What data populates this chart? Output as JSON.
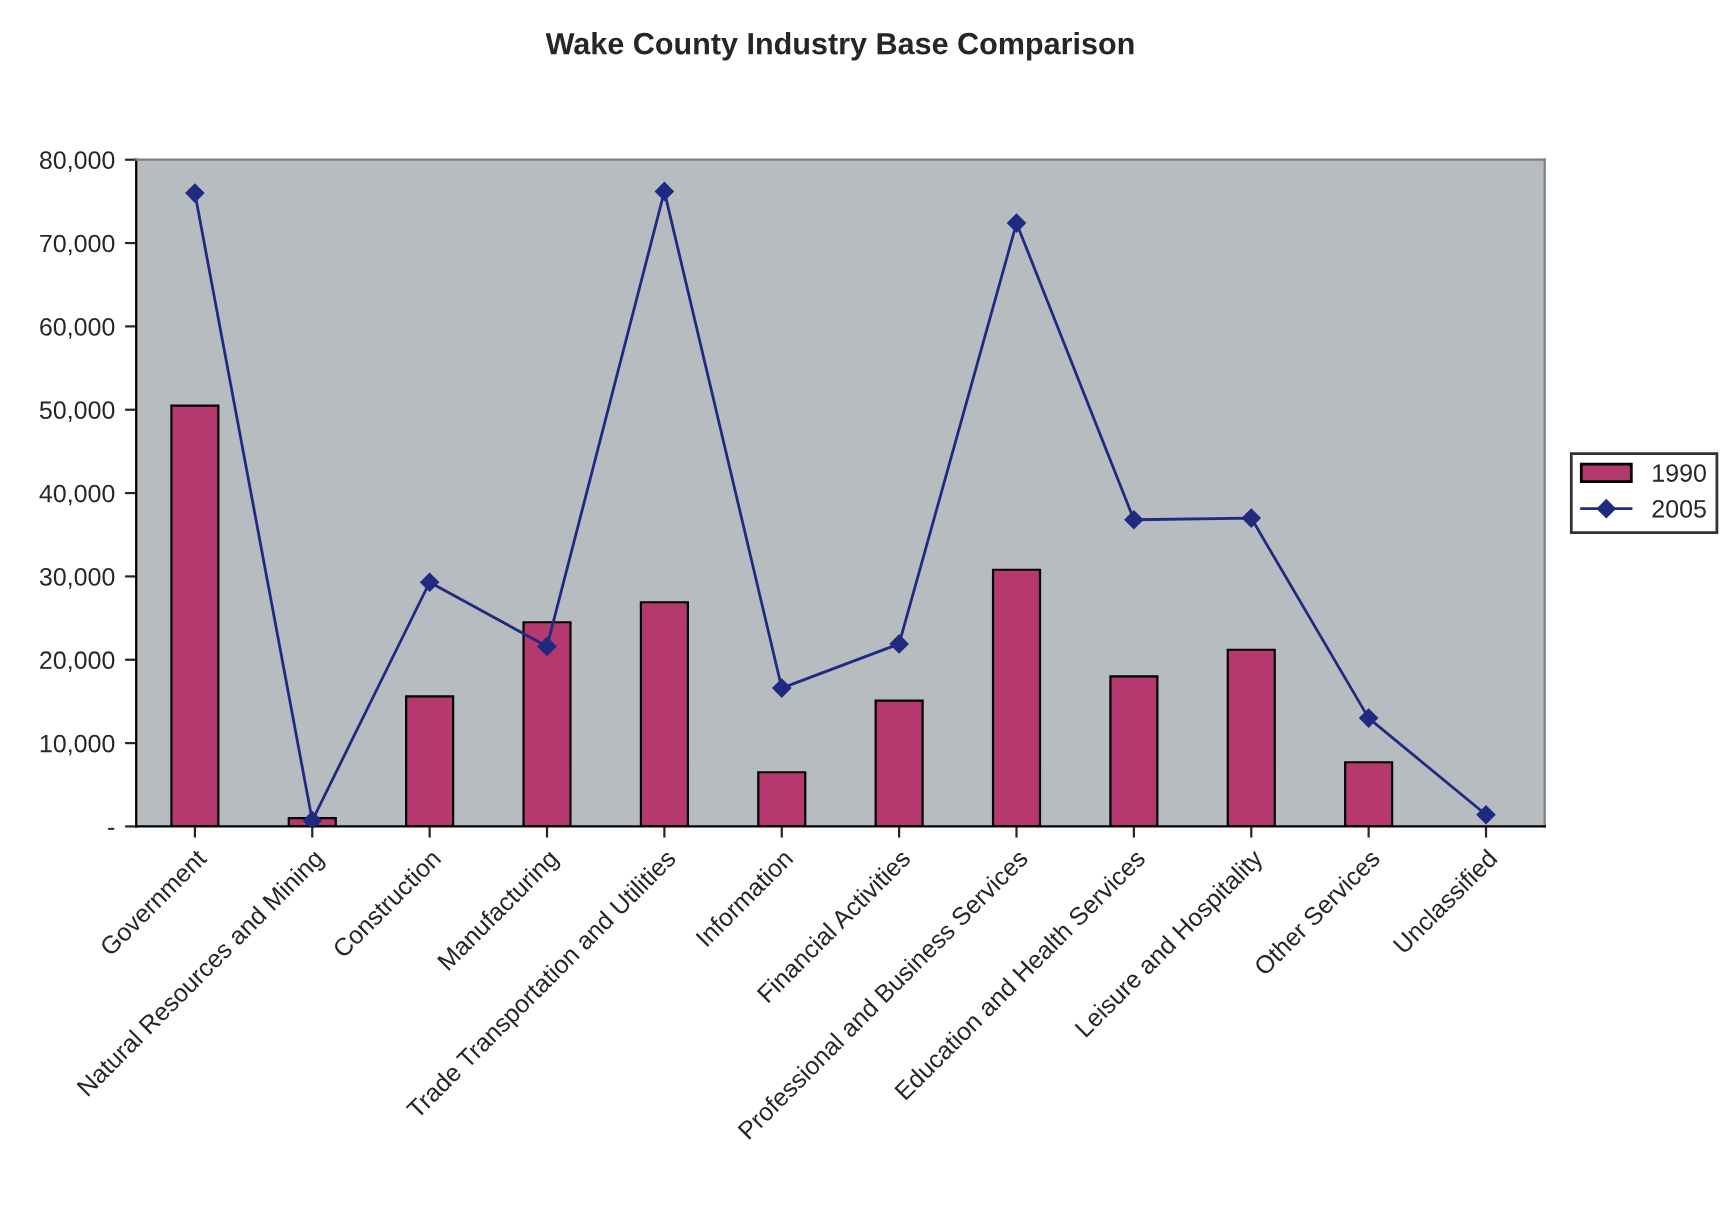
{
  "chart_data": {
    "type": "bar",
    "title": "Wake County Industry Base Comparison",
    "categories": [
      "Government",
      "Natural Resources and Mining",
      "Construction",
      "Manufacturing",
      "Trade Transportation and Utilities",
      "Information",
      "Financial Activities",
      "Professional and Business Services",
      "Education and Health Services",
      "Leisure and Hospitality",
      "Other Services",
      "Unclassified"
    ],
    "series": [
      {
        "name": "1990",
        "color": "#b5386e",
        "values": [
          50500,
          1000,
          15600,
          24500,
          26900,
          6500,
          15100,
          30800,
          18000,
          21200,
          7700,
          null
        ]
      },
      {
        "name": "2005",
        "type": "line",
        "color": "#1f2a80",
        "marker": "diamond",
        "values": [
          76000,
          700,
          29300,
          21600,
          76200,
          16600,
          21900,
          72400,
          36800,
          37000,
          13000,
          1400
        ]
      }
    ],
    "ylim": [
      0,
      80000
    ],
    "yticks": [
      {
        "value": 0,
        "label": "-"
      },
      {
        "value": 10000,
        "label": "10,000"
      },
      {
        "value": 20000,
        "label": "20,000"
      },
      {
        "value": 30000,
        "label": "30,000"
      },
      {
        "value": 40000,
        "label": "40,000"
      },
      {
        "value": 50000,
        "label": "50,000"
      },
      {
        "value": 60000,
        "label": "60,000"
      },
      {
        "value": 70000,
        "label": "70,000"
      },
      {
        "value": 80000,
        "label": "80,000"
      }
    ],
    "grid": false,
    "legend": "right"
  }
}
